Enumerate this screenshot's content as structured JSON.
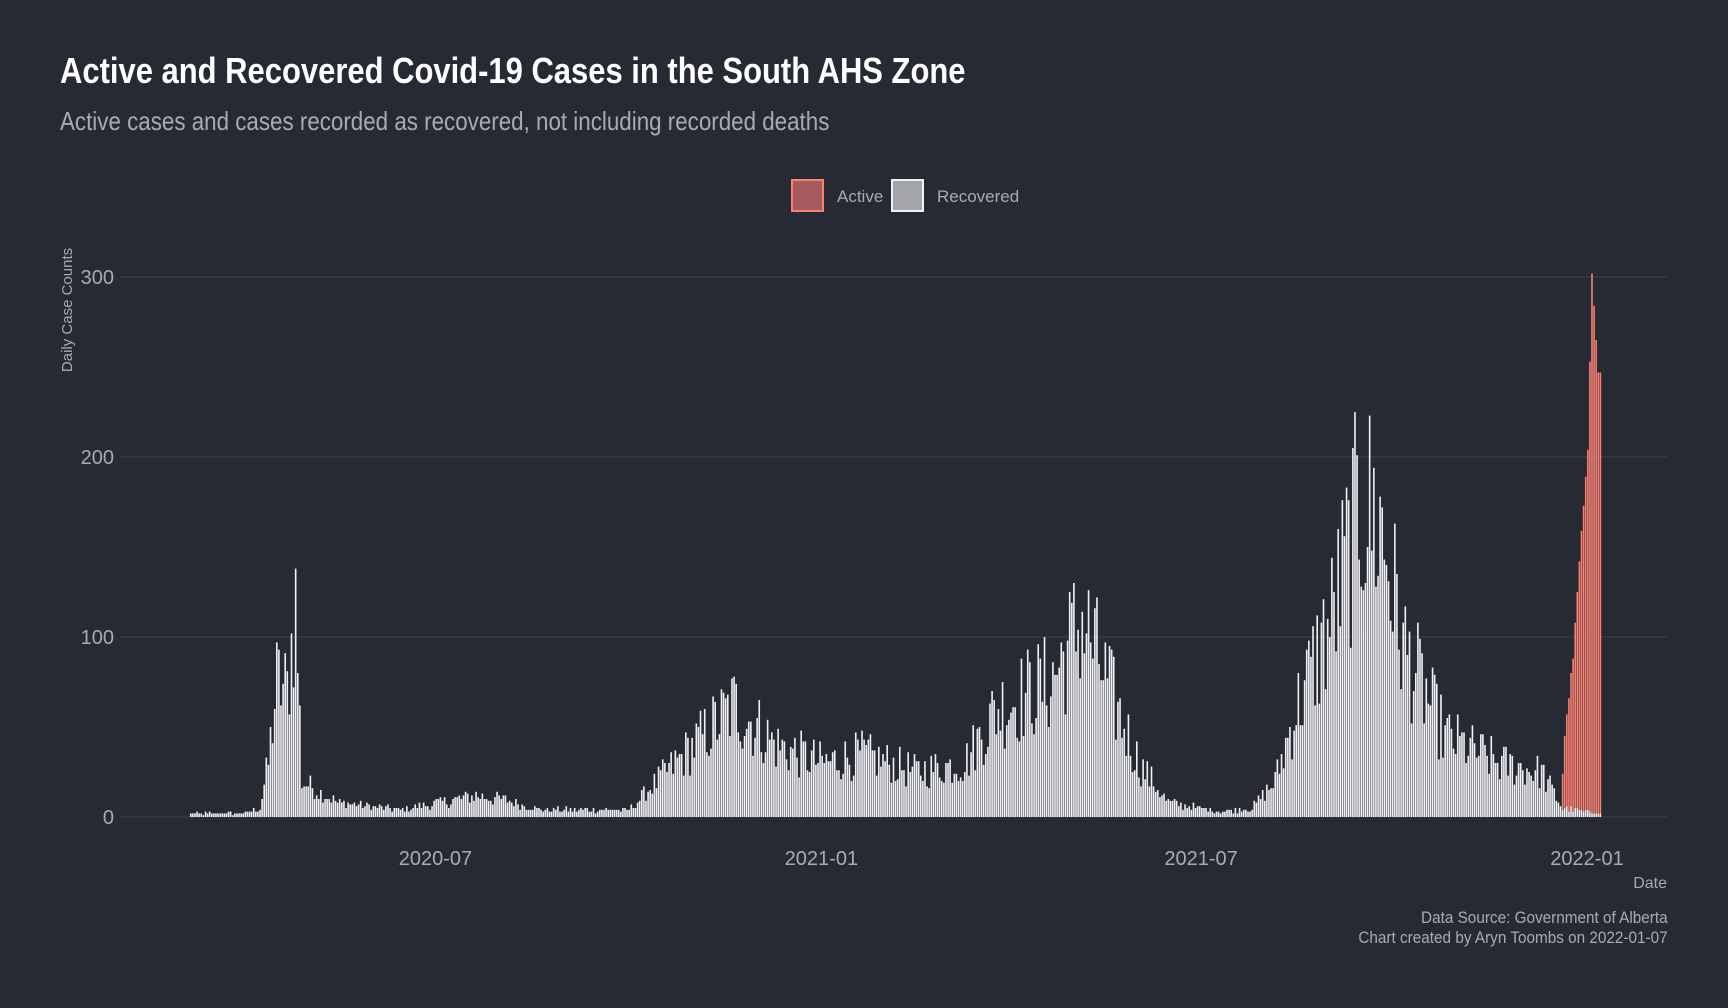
{
  "chart_data": {
    "type": "bar",
    "title": "Active and Recovered Covid-19 Cases in the South AHS Zone",
    "subtitle": "Active cases and cases recorded as recovered, not including recorded deaths",
    "xlabel": "Date",
    "ylabel": "Daily Case Counts",
    "ylim": [
      0,
      330
    ],
    "yticks": [
      0,
      100,
      200,
      300
    ],
    "xticks": [
      {
        "date": "2020-07-01",
        "label": "2020-07"
      },
      {
        "date": "2021-01-01",
        "label": "2021-01"
      },
      {
        "date": "2021-07-01",
        "label": "2021-07"
      },
      {
        "date": "2022-01-01",
        "label": "2022-01"
      }
    ],
    "grid": true,
    "legend": {
      "placement": "top-center",
      "entries": [
        "Active",
        "Recovered"
      ]
    },
    "colors": {
      "Active": "#fa8072",
      "Recovered": "#f2f1f6",
      "background": "#262a33",
      "grid": "#3d414b"
    },
    "x_start": "2020-03-06",
    "x_end": "2022-01-07",
    "stack_order": [
      "Recovered",
      "Active"
    ],
    "series": [
      {
        "name": "Recovered",
        "knots": [
          [
            "2020-03-06",
            2
          ],
          [
            "2020-04-01",
            2
          ],
          [
            "2020-04-08",
            5
          ],
          [
            "2020-04-12",
            30
          ],
          [
            "2020-04-16",
            75
          ],
          [
            "2020-04-21",
            70
          ],
          [
            "2020-04-25",
            120
          ],
          [
            "2020-04-28",
            20
          ],
          [
            "2020-05-15",
            8
          ],
          [
            "2020-06-15",
            4
          ],
          [
            "2020-07-20",
            12
          ],
          [
            "2020-08-01",
            10
          ],
          [
            "2020-08-20",
            4
          ],
          [
            "2020-09-10",
            4
          ],
          [
            "2020-10-01",
            4
          ],
          [
            "2020-10-10",
            15
          ],
          [
            "2020-11-01",
            40
          ],
          [
            "2020-11-20",
            62
          ],
          [
            "2020-12-10",
            40
          ],
          [
            "2021-01-01",
            30
          ],
          [
            "2021-01-20",
            35
          ],
          [
            "2021-02-15",
            25
          ],
          [
            "2021-03-10",
            30
          ],
          [
            "2021-03-25",
            60
          ],
          [
            "2021-04-20",
            75
          ],
          [
            "2021-05-05",
            110
          ],
          [
            "2021-05-20",
            65
          ],
          [
            "2021-06-01",
            30
          ],
          [
            "2021-06-15",
            8
          ],
          [
            "2021-07-10",
            3
          ],
          [
            "2021-07-25",
            5
          ],
          [
            "2021-08-05",
            20
          ],
          [
            "2021-08-15",
            60
          ],
          [
            "2021-09-01",
            110
          ],
          [
            "2021-09-15",
            175
          ],
          [
            "2021-09-25",
            160
          ],
          [
            "2021-10-05",
            95
          ],
          [
            "2021-10-25",
            45
          ],
          [
            "2021-11-20",
            30
          ],
          [
            "2021-12-10",
            25
          ],
          [
            "2021-12-20",
            5
          ],
          [
            "2022-01-07",
            2
          ]
        ]
      },
      {
        "name": "Active",
        "knots": [
          [
            "2021-12-19",
            0
          ],
          [
            "2021-12-21",
            40
          ],
          [
            "2021-12-25",
            85
          ],
          [
            "2021-12-29",
            155
          ],
          [
            "2022-01-01",
            200
          ],
          [
            "2022-01-03",
            300
          ],
          [
            "2022-01-06",
            245
          ],
          [
            "2022-01-07",
            245
          ]
        ]
      }
    ]
  },
  "caption": {
    "source": "Data Source: Government of Alberta",
    "credit": "Chart created by Aryn Toombs on 2022-01-07"
  }
}
